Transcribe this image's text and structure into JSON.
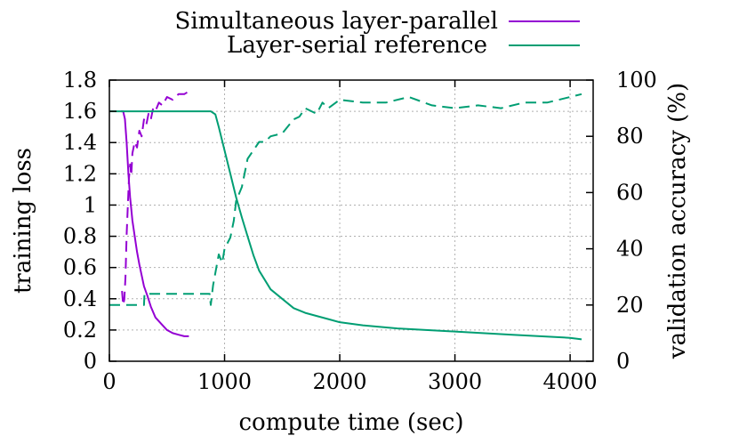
{
  "chart_data": {
    "type": "line",
    "title": "",
    "xlabel": "compute time (sec)",
    "ylabel": "training loss",
    "y2label": "validation accuracy (%)",
    "xlim": [
      0,
      4200
    ],
    "ylim": [
      0,
      1.8
    ],
    "y2lim": [
      0,
      100
    ],
    "x_ticks": [
      "0",
      "1000",
      "2000",
      "3000",
      "4000"
    ],
    "y_ticks": [
      "0",
      "0.2",
      "0.4",
      "0.6",
      "0.8",
      "1",
      "1.2",
      "1.4",
      "1.6",
      "1.8"
    ],
    "y2_ticks": [
      "0",
      "20",
      "40",
      "60",
      "80",
      "100"
    ],
    "grid": true,
    "legend_position": "top-right",
    "series": [
      {
        "name": "Simultaneous layer-parallel",
        "color": "#9400d3",
        "loss": {
          "x": [
            100,
            120,
            135,
            150,
            165,
            180,
            200,
            220,
            240,
            260,
            280,
            300,
            330,
            360,
            400,
            450,
            500,
            550,
            600,
            650,
            690
          ],
          "y": [
            1.6,
            1.6,
            1.55,
            1.4,
            1.2,
            1.05,
            0.9,
            0.8,
            0.7,
            0.62,
            0.55,
            0.48,
            0.42,
            0.35,
            0.28,
            0.24,
            0.2,
            0.18,
            0.17,
            0.16,
            0.16
          ]
        },
        "accuracy": {
          "x": [
            110,
            120,
            130,
            140,
            150,
            160,
            170,
            180,
            190,
            200,
            220,
            240,
            260,
            280,
            300,
            320,
            340,
            360,
            380,
            400,
            430,
            460,
            500,
            550,
            600,
            650,
            690
          ],
          "y": [
            25,
            20,
            22,
            30,
            45,
            55,
            65,
            70,
            66,
            74,
            78,
            76,
            82,
            80,
            86,
            84,
            88,
            86,
            90,
            89,
            92,
            91,
            94,
            93,
            95,
            95,
            96
          ]
        }
      },
      {
        "name": "Layer-serial reference",
        "color": "#009e73",
        "loss": {
          "x": [
            0,
            200,
            400,
            600,
            800,
            880,
            920,
            950,
            1000,
            1050,
            1100,
            1150,
            1200,
            1250,
            1300,
            1400,
            1500,
            1600,
            1700,
            1800,
            1900,
            2000,
            2200,
            2500,
            3000,
            3500,
            4000,
            4100
          ],
          "y": [
            1.6,
            1.6,
            1.6,
            1.6,
            1.6,
            1.6,
            1.58,
            1.5,
            1.35,
            1.2,
            1.05,
            0.92,
            0.8,
            0.68,
            0.58,
            0.46,
            0.4,
            0.34,
            0.31,
            0.29,
            0.27,
            0.25,
            0.23,
            0.21,
            0.19,
            0.17,
            0.15,
            0.14
          ]
        },
        "accuracy": {
          "x": [
            0,
            200,
            300,
            305,
            400,
            600,
            870,
            880,
            900,
            950,
            980,
            1000,
            1050,
            1080,
            1100,
            1150,
            1200,
            1250,
            1300,
            1350,
            1400,
            1500,
            1600,
            1650,
            1700,
            1800,
            1850,
            1900,
            2000,
            2200,
            2400,
            2600,
            2800,
            3000,
            3200,
            3400,
            3600,
            3800,
            4000,
            4100
          ],
          "y": [
            20,
            20,
            20,
            24,
            24,
            24,
            24,
            20,
            27,
            38,
            35,
            40,
            44,
            50,
            57,
            62,
            72,
            75,
            78,
            78,
            80,
            81,
            86,
            87,
            90,
            88,
            92,
            90,
            93,
            92,
            92,
            94,
            91,
            90,
            91,
            90,
            92,
            92,
            94,
            95
          ]
        }
      }
    ]
  }
}
